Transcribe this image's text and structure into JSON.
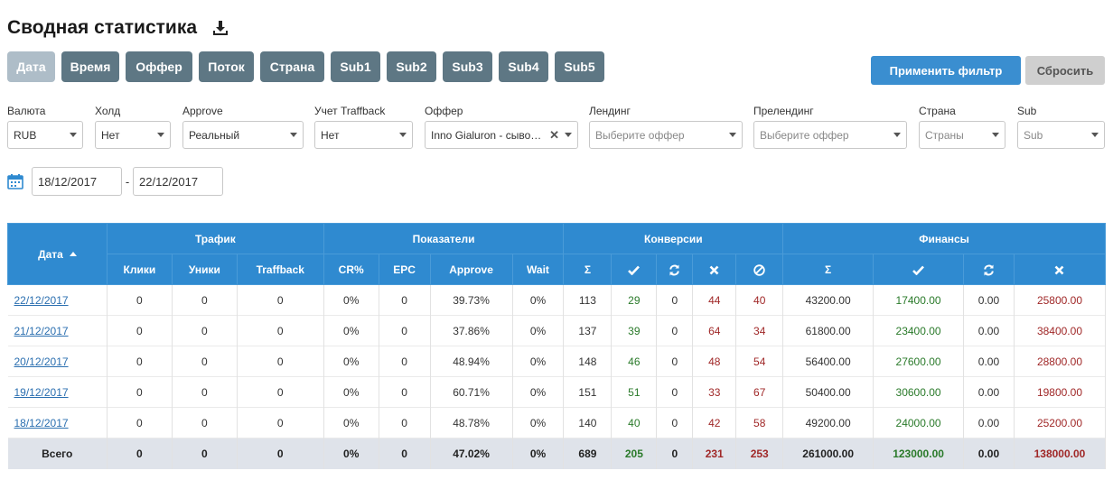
{
  "page": {
    "title": "Сводная статистика",
    "download_icon": "download-icon"
  },
  "groupby": [
    {
      "label": "Дата",
      "active": true
    },
    {
      "label": "Время"
    },
    {
      "label": "Оффер"
    },
    {
      "label": "Поток"
    },
    {
      "label": "Страна"
    },
    {
      "label": "Sub1"
    },
    {
      "label": "Sub2"
    },
    {
      "label": "Sub3"
    },
    {
      "label": "Sub4"
    },
    {
      "label": "Sub5"
    }
  ],
  "actions": {
    "apply": "Применить фильтр",
    "reset": "Сбросить"
  },
  "filters": [
    {
      "label": "Валюта",
      "value": "RUB",
      "placeholder": false
    },
    {
      "label": "Холд",
      "value": "Нет",
      "placeholder": false
    },
    {
      "label": "Approve",
      "value": "Реальный",
      "placeholder": false
    },
    {
      "label": "Учет Traffback",
      "value": "Нет",
      "placeholder": false
    },
    {
      "label": "Оффер",
      "value": "Inno Gialuron - сыво…",
      "placeholder": false,
      "clearable": true
    },
    {
      "label": "Лендинг",
      "value": "Выберите оффер",
      "placeholder": true
    },
    {
      "label": "Прелендинг",
      "value": "Выберите оффер",
      "placeholder": true
    },
    {
      "label": "Страна",
      "value": "Страны",
      "placeholder": true
    },
    {
      "label": "Sub",
      "value": "Sub",
      "placeholder": true
    }
  ],
  "date_range": {
    "from": "18/12/2017",
    "separator": "-",
    "to": "22/12/2017",
    "icon": "calendar-icon"
  },
  "table": {
    "date_header": "Дата",
    "groups": [
      "Трафик",
      "Показатели",
      "Конверсии",
      "Финансы"
    ],
    "sub_headers": [
      "Клики",
      "Уники",
      "Traffback",
      "CR%",
      "EPC",
      "Approve",
      "Wait"
    ],
    "conv_headers": [
      "Σ",
      "check-icon",
      "refresh-icon",
      "cross-icon",
      "ban-icon"
    ],
    "fin_headers": [
      "Σ",
      "check-icon",
      "refresh-icon",
      "cross-icon"
    ],
    "rows": [
      {
        "date": "22/12/2017",
        "clicks": "0",
        "uniques": "0",
        "traffback": "0",
        "cr": "0%",
        "epc": "0",
        "approve": "39.73%",
        "wait": "0%",
        "c_sum": "113",
        "c_ok": "29",
        "c_hold": "0",
        "c_rej": "44",
        "c_trash": "40",
        "f_sum": "43200.00",
        "f_ok": "17400.00",
        "f_hold": "0.00",
        "f_rej": "25800.00"
      },
      {
        "date": "21/12/2017",
        "clicks": "0",
        "uniques": "0",
        "traffback": "0",
        "cr": "0%",
        "epc": "0",
        "approve": "37.86%",
        "wait": "0%",
        "c_sum": "137",
        "c_ok": "39",
        "c_hold": "0",
        "c_rej": "64",
        "c_trash": "34",
        "f_sum": "61800.00",
        "f_ok": "23400.00",
        "f_hold": "0.00",
        "f_rej": "38400.00"
      },
      {
        "date": "20/12/2017",
        "clicks": "0",
        "uniques": "0",
        "traffback": "0",
        "cr": "0%",
        "epc": "0",
        "approve": "48.94%",
        "wait": "0%",
        "c_sum": "148",
        "c_ok": "46",
        "c_hold": "0",
        "c_rej": "48",
        "c_trash": "54",
        "f_sum": "56400.00",
        "f_ok": "27600.00",
        "f_hold": "0.00",
        "f_rej": "28800.00"
      },
      {
        "date": "19/12/2017",
        "clicks": "0",
        "uniques": "0",
        "traffback": "0",
        "cr": "0%",
        "epc": "0",
        "approve": "60.71%",
        "wait": "0%",
        "c_sum": "151",
        "c_ok": "51",
        "c_hold": "0",
        "c_rej": "33",
        "c_trash": "67",
        "f_sum": "50400.00",
        "f_ok": "30600.00",
        "f_hold": "0.00",
        "f_rej": "19800.00"
      },
      {
        "date": "18/12/2017",
        "clicks": "0",
        "uniques": "0",
        "traffback": "0",
        "cr": "0%",
        "epc": "0",
        "approve": "48.78%",
        "wait": "0%",
        "c_sum": "140",
        "c_ok": "40",
        "c_hold": "0",
        "c_rej": "42",
        "c_trash": "58",
        "f_sum": "49200.00",
        "f_ok": "24000.00",
        "f_hold": "0.00",
        "f_rej": "25200.00"
      }
    ],
    "total": {
      "date": "Всего",
      "clicks": "0",
      "uniques": "0",
      "traffback": "0",
      "cr": "0%",
      "epc": "0",
      "approve": "47.02%",
      "wait": "0%",
      "c_sum": "689",
      "c_ok": "205",
      "c_hold": "0",
      "c_rej": "231",
      "c_trash": "253",
      "f_sum": "261000.00",
      "f_ok": "123000.00",
      "f_hold": "0.00",
      "f_rej": "138000.00"
    }
  },
  "colors": {
    "header_blue": "#2f8ad0",
    "button_slate": "#5e7784",
    "button_active": "#aebdc8",
    "positive": "#2a7a2a",
    "negative": "#a02828",
    "link": "#2b6fb0"
  }
}
